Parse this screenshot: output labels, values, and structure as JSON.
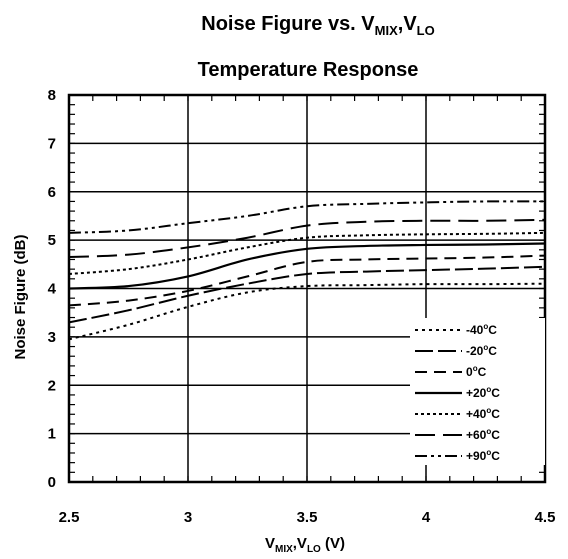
{
  "chart_data": {
    "type": "line",
    "title_line1": {
      "main": "Noise Figure vs. V",
      "sub1": "MIX",
      "sep": ",V",
      "sub2": "LO"
    },
    "title_line2": "Temperature Response",
    "xlabel": {
      "pre": "V",
      "sub1": "MIX",
      "sep": ",V",
      "sub2": "LO",
      "unit": " (V)"
    },
    "ylabel": "Noise Figure (dB)",
    "xlim": [
      2.5,
      4.5
    ],
    "ylim": [
      0,
      8
    ],
    "xticks": [
      "2.5",
      "3",
      "3.5",
      "4",
      "4.5"
    ],
    "yticks": [
      "0",
      "1",
      "2",
      "3",
      "4",
      "5",
      "6",
      "7",
      "8"
    ],
    "grid": true,
    "legend_position": "bottom-right",
    "x": [
      2.5,
      2.75,
      3.0,
      3.25,
      3.5,
      3.75,
      4.0,
      4.25,
      4.5
    ],
    "series": [
      {
        "name": "-40°C",
        "pre": "-40",
        "dash": "3,4",
        "width": 2,
        "values": [
          2.95,
          3.25,
          3.62,
          3.92,
          4.05,
          4.07,
          4.09,
          4.09,
          4.1
        ]
      },
      {
        "name": "-20°C",
        "pre": "-20",
        "dash": "18,5",
        "width": 2,
        "values": [
          3.3,
          3.55,
          3.85,
          4.1,
          4.3,
          4.35,
          4.38,
          4.41,
          4.45
        ]
      },
      {
        "name": "0°C",
        "pre": "0",
        "dash": "12,7",
        "width": 2,
        "values": [
          3.65,
          3.75,
          3.95,
          4.25,
          4.55,
          4.6,
          4.62,
          4.64,
          4.68
        ]
      },
      {
        "name": "+20°C",
        "pre": "+20",
        "dash": "",
        "width": 2.2,
        "values": [
          4.0,
          4.05,
          4.25,
          4.6,
          4.82,
          4.88,
          4.9,
          4.91,
          4.93
        ]
      },
      {
        "name": "+40°C",
        "pre": "+40",
        "dash": "3,3",
        "width": 2,
        "values": [
          4.3,
          4.4,
          4.6,
          4.85,
          5.05,
          5.1,
          5.12,
          5.13,
          5.15
        ]
      },
      {
        "name": "+60°C",
        "pre": "+60",
        "dash": "20,8",
        "width": 2,
        "values": [
          4.65,
          4.7,
          4.85,
          5.05,
          5.3,
          5.38,
          5.4,
          5.4,
          5.42
        ]
      },
      {
        "name": "+90°C",
        "pre": "+90",
        "dash": "12,4,3,4,3,4",
        "width": 2,
        "values": [
          5.15,
          5.2,
          5.35,
          5.5,
          5.7,
          5.75,
          5.78,
          5.8,
          5.8
        ]
      }
    ],
    "legend_degree": "o",
    "legend_unit": "C"
  }
}
